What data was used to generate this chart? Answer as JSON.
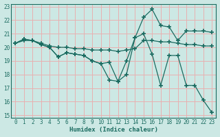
{
  "xlabel": "Humidex (Indice chaleur)",
  "ylabel": "",
  "xlim": [
    -0.5,
    23.5
  ],
  "ylim": [
    14.8,
    23.2
  ],
  "xticks": [
    0,
    1,
    2,
    3,
    4,
    5,
    6,
    7,
    8,
    9,
    10,
    11,
    12,
    13,
    14,
    15,
    16,
    17,
    18,
    19,
    20,
    21,
    22,
    23
  ],
  "yticks": [
    15,
    16,
    17,
    18,
    19,
    20,
    21,
    22,
    23
  ],
  "bg_color": "#cce8e4",
  "line_color": "#1a6b60",
  "grid_color": "#e8b0b0",
  "line1_x": [
    0,
    1,
    2,
    3,
    4,
    5,
    6,
    7,
    8,
    9,
    10,
    11,
    12,
    13,
    14,
    15,
    16,
    17,
    18,
    19,
    20,
    21,
    22,
    23
  ],
  "line1_y": [
    20.3,
    20.5,
    20.5,
    20.3,
    20.1,
    20.0,
    20.0,
    19.9,
    19.9,
    19.8,
    19.8,
    19.8,
    19.7,
    19.8,
    19.9,
    20.5,
    20.5,
    20.4,
    20.4,
    20.3,
    20.2,
    20.2,
    20.1,
    20.1
  ],
  "line2_x": [
    0,
    1,
    2,
    3,
    4,
    5,
    6,
    7,
    8,
    9,
    10,
    11,
    12,
    13,
    14,
    15,
    16,
    17,
    18,
    19,
    20,
    21,
    22,
    23
  ],
  "line2_y": [
    20.3,
    20.6,
    20.5,
    20.2,
    20.0,
    19.3,
    19.6,
    19.5,
    19.4,
    19.0,
    18.8,
    18.9,
    17.5,
    19.0,
    20.7,
    22.2,
    22.8,
    21.6,
    21.5,
    20.5,
    21.2,
    21.2,
    21.2,
    21.1
  ],
  "line3_x": [
    0,
    1,
    2,
    3,
    4,
    5,
    6,
    7,
    8,
    9,
    10,
    11,
    12,
    13,
    14,
    15,
    16,
    17,
    18,
    19,
    20,
    21,
    22,
    23
  ],
  "line3_y": [
    20.3,
    20.6,
    20.5,
    20.2,
    20.0,
    19.3,
    19.6,
    19.5,
    19.4,
    19.0,
    18.8,
    17.6,
    17.5,
    18.0,
    20.7,
    21.0,
    19.5,
    17.2,
    19.4,
    19.4,
    17.2,
    17.2,
    16.1,
    15.2
  ]
}
